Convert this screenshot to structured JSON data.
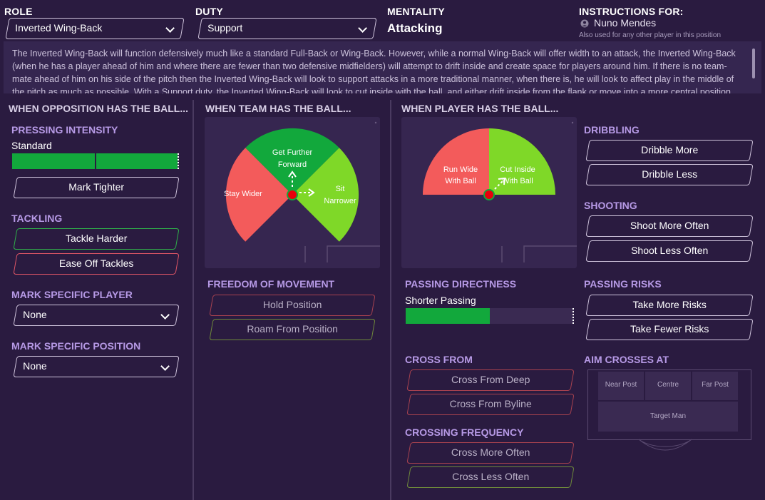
{
  "header": {
    "role_label": "ROLE",
    "role_value": "Inverted Wing-Back",
    "duty_label": "DUTY",
    "duty_value": "Support",
    "mentality_label": "MENTALITY",
    "mentality_value": "Attacking",
    "instructions_label": "INSTRUCTIONS FOR:",
    "player_name": "Nuno Mendes",
    "also_used": "Also used for any other player in this position"
  },
  "description": "The Inverted Wing-Back will function defensively much like a standard Full-Back or Wing-Back. However, while a normal Wing-Back will offer width to an attack, the Inverted Wing-Back (when he has a player ahead of him and where there are fewer than two defensive midfielders) will attempt to drift inside and create space for players around him. If there is no team-mate ahead of him on his side of the pitch then the Inverted Wing-Back will look to support attacks in a more traditional manner, when there is, he will look to affect play in the middle of the pitch as much as possible. With a Support duty, the Inverted Wing-Back will look to cut inside with the ball, and either drift inside from the flank or move into a more central position to",
  "opposition": {
    "heading": "WHEN OPPOSITION HAS THE BALL...",
    "pressing_label": "PRESSING INTENSITY",
    "pressing_value": "Standard",
    "pressing_level_fraction": 1.0,
    "mark_tighter": "Mark Tighter",
    "tackling_label": "TACKLING",
    "tackle_harder": "Tackle Harder",
    "ease_off": "Ease Off Tackles",
    "mark_player_label": "MARK SPECIFIC PLAYER",
    "mark_player_value": "None",
    "mark_position_label": "MARK SPECIFIC POSITION",
    "mark_position_value": "None"
  },
  "team": {
    "heading": "WHEN TEAM HAS THE BALL...",
    "get_further_1": "Get Further",
    "get_further_2": "Forward",
    "stay_wider": "Stay Wider",
    "sit_1": "Sit",
    "sit_2": "Narrower",
    "freedom_label": "FREEDOM OF MOVEMENT",
    "hold_position": "Hold Position",
    "roam": "Roam From Position"
  },
  "player": {
    "heading": "WHEN PLAYER HAS THE BALL...",
    "run_wide_1": "Run Wide",
    "run_wide_2": "With Ball",
    "cut_inside_1": "Cut Inside",
    "cut_inside_2": "With Ball",
    "passing_label": "PASSING DIRECTNESS",
    "passing_value": "Shorter Passing",
    "passing_level_fraction": 0.5,
    "cross_from_label": "CROSS FROM",
    "cross_deep": "Cross From Deep",
    "cross_byline": "Cross From Byline",
    "crossing_freq_label": "CROSSING FREQUENCY",
    "cross_more": "Cross More Often",
    "cross_less": "Cross Less Often"
  },
  "right": {
    "dribbling_label": "DRIBBLING",
    "dribble_more": "Dribble More",
    "dribble_less": "Dribble Less",
    "shooting_label": "SHOOTING",
    "shoot_more": "Shoot More Often",
    "shoot_less": "Shoot Less Often",
    "passing_risks_label": "PASSING RISKS",
    "take_more": "Take More Risks",
    "take_fewer": "Take Fewer Risks",
    "aim_label": "AIM CROSSES AT",
    "near_post": "Near Post",
    "centre": "Centre",
    "far_post": "Far Post",
    "target_man": "Target Man"
  },
  "colors": {
    "green": "#12a83c",
    "lime": "#7fd828",
    "red": "#f35b5b",
    "accent": "#b79ae6"
  }
}
